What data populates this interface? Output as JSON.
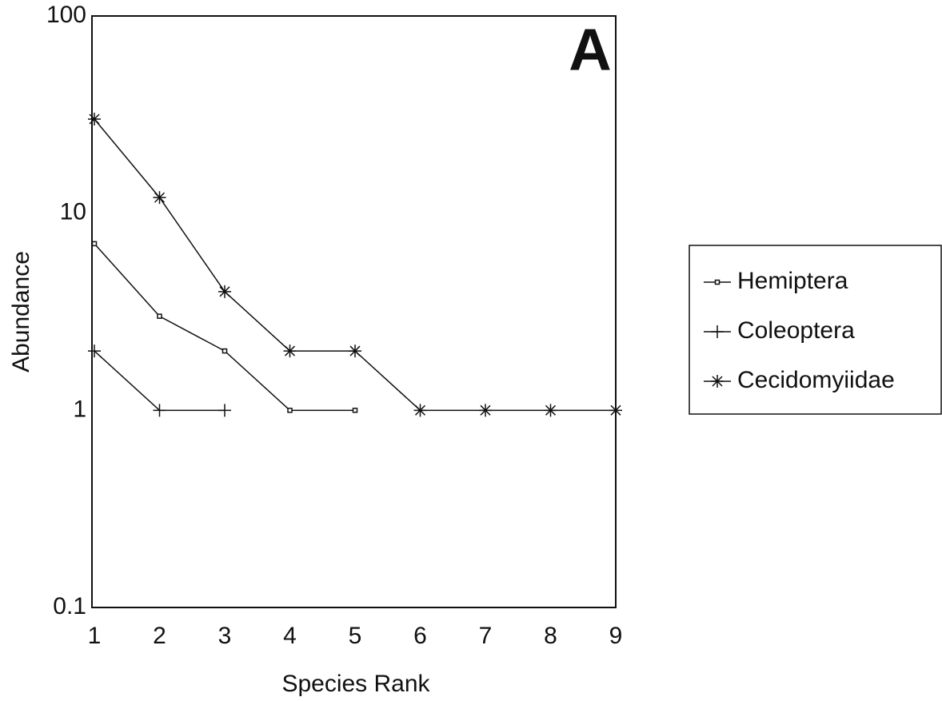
{
  "chart_data": {
    "type": "line",
    "annotation": "A",
    "x_label": "Species Rank",
    "y_label": "Abundance",
    "x": [
      1,
      2,
      3,
      4,
      5,
      6,
      7,
      8,
      9
    ],
    "series": [
      {
        "name": "Hemiptera",
        "color": "#111111",
        "marker": "square",
        "values": [
          7,
          3,
          2,
          1,
          1,
          null,
          null,
          null,
          null
        ]
      },
      {
        "name": "Coleoptera",
        "color": "#111111",
        "marker": "plus",
        "values": [
          2,
          1,
          1,
          null,
          null,
          null,
          null,
          null,
          null
        ]
      },
      {
        "name": "Cecidomyiidae",
        "color": "#111111",
        "marker": "asterisk",
        "values": [
          30,
          12,
          4,
          2,
          2,
          1,
          1,
          1,
          1
        ]
      }
    ],
    "xlim": [
      1,
      9
    ],
    "xticks": [
      1,
      2,
      3,
      4,
      5,
      6,
      7,
      8,
      9
    ],
    "ylim": [
      0.1,
      100
    ],
    "yticks": [
      0.1,
      1,
      10,
      100
    ],
    "y_log_scale": true,
    "grid": false,
    "legend": "right"
  }
}
